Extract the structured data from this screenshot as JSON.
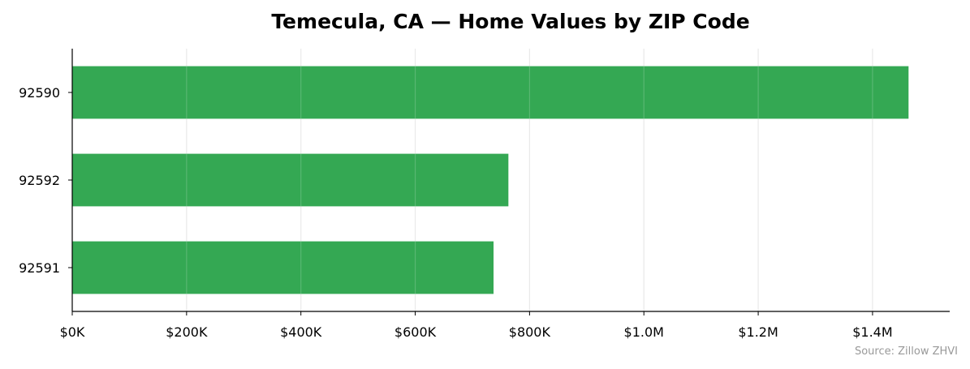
{
  "chart_data": {
    "type": "bar",
    "orientation": "horizontal",
    "title": "Temecula, CA — Home Values by ZIP Code",
    "xlabel": "",
    "ylabel": "",
    "categories": [
      "92590",
      "92592",
      "92591"
    ],
    "values": [
      1463000,
      763000,
      737000
    ],
    "xlim": [
      0,
      1535000
    ],
    "xticks": [
      0,
      200000,
      400000,
      600000,
      800000,
      1000000,
      1200000,
      1400000
    ],
    "xtick_labels": [
      "$0K",
      "$200K",
      "$400K",
      "$600K",
      "$800K",
      "$1.0M",
      "$1.2M",
      "$1.4M"
    ],
    "grid": "vertical",
    "bar_color": "#34a853",
    "grid_color": "#e6e6e6",
    "source": "Source: Zillow ZHVI"
  }
}
